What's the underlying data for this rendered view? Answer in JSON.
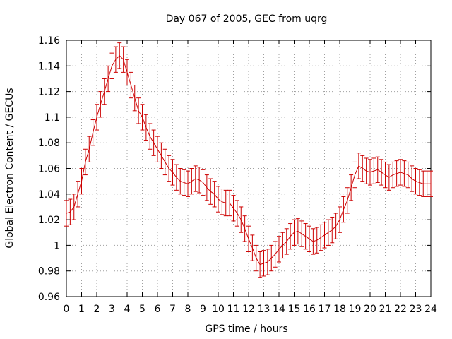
{
  "chart_data": {
    "type": "line",
    "title": "Day 067 of 2005, GEC from uqrg",
    "xlabel": "GPS time / hours",
    "ylabel": "Global Electron Content / GECUs",
    "xlim": [
      0,
      24
    ],
    "ylim": [
      0.96,
      1.16
    ],
    "x_ticks": [
      0,
      1,
      2,
      3,
      4,
      5,
      6,
      7,
      8,
      9,
      10,
      11,
      12,
      13,
      14,
      15,
      16,
      17,
      18,
      19,
      20,
      21,
      22,
      23,
      24
    ],
    "y_ticks": [
      0.96,
      0.98,
      1,
      1.02,
      1.04,
      1.06,
      1.08,
      1.1,
      1.12,
      1.14,
      1.16
    ],
    "y_tick_labels": [
      "0.96",
      "0.98",
      "1",
      "1.02",
      "1.04",
      "1.06",
      "1.08",
      "1.1",
      "1.12",
      "1.14",
      "1.16"
    ],
    "grid": true,
    "color": "#cc0000",
    "error": 0.01,
    "series": [
      {
        "x": [
          0,
          0.25,
          0.5,
          0.75,
          1,
          1.25,
          1.5,
          1.75,
          2,
          2.25,
          2.5,
          2.75,
          3,
          3.25,
          3.5,
          3.75,
          4,
          4.25,
          4.5,
          4.75,
          5,
          5.25,
          5.5,
          5.75,
          6,
          6.25,
          6.5,
          6.75,
          7,
          7.25,
          7.5,
          7.75,
          8,
          8.25,
          8.5,
          8.75,
          9,
          9.25,
          9.5,
          9.75,
          10,
          10.25,
          10.5,
          10.75,
          11,
          11.25,
          11.5,
          11.75,
          12,
          12.25,
          12.5,
          12.75,
          13,
          13.25,
          13.5,
          13.75,
          14,
          14.25,
          14.5,
          14.75,
          15,
          15.25,
          15.5,
          15.75,
          16,
          16.25,
          16.5,
          16.75,
          17,
          17.25,
          17.5,
          17.75,
          18,
          18.25,
          18.5,
          18.75,
          19,
          19.25,
          19.5,
          19.75,
          20,
          20.25,
          20.5,
          20.75,
          21,
          21.25,
          21.5,
          21.75,
          22,
          22.25,
          22.5,
          22.75,
          23,
          23.25,
          23.5,
          23.75,
          24
        ],
        "y": [
          1.025,
          1.026,
          1.03,
          1.04,
          1.05,
          1.065,
          1.075,
          1.088,
          1.1,
          1.11,
          1.12,
          1.13,
          1.14,
          1.145,
          1.148,
          1.145,
          1.135,
          1.125,
          1.115,
          1.105,
          1.1,
          1.092,
          1.085,
          1.08,
          1.075,
          1.07,
          1.065,
          1.06,
          1.057,
          1.053,
          1.05,
          1.049,
          1.048,
          1.05,
          1.052,
          1.051,
          1.049,
          1.045,
          1.042,
          1.04,
          1.036,
          1.034,
          1.033,
          1.033,
          1.029,
          1.025,
          1.02,
          1.013,
          1.005,
          0.998,
          0.99,
          0.985,
          0.986,
          0.987,
          0.99,
          0.993,
          0.997,
          1,
          1.003,
          1.007,
          1.01,
          1.011,
          1.009,
          1.007,
          1.005,
          1.003,
          1.004,
          1.006,
          1.008,
          1.01,
          1.012,
          1.015,
          1.02,
          1.028,
          1.035,
          1.045,
          1.055,
          1.062,
          1.06,
          1.058,
          1.057,
          1.058,
          1.059,
          1.057,
          1.055,
          1.053,
          1.055,
          1.056,
          1.057,
          1.056,
          1.055,
          1.052,
          1.05,
          1.049,
          1.048,
          1.048,
          1.048
        ]
      }
    ]
  }
}
